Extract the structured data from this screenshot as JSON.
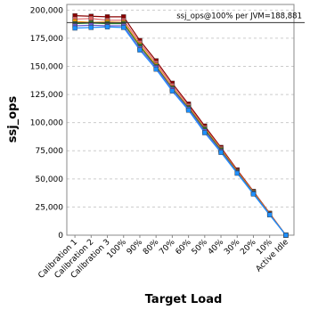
{
  "chart_data": {
    "type": "line",
    "y_label": "ssj_ops",
    "x_label": "Target Load",
    "categories": [
      "Calibration 1",
      "Calibration 2",
      "Calibration 3",
      "100%",
      "90%",
      "80%",
      "70%",
      "60%",
      "50%",
      "40%",
      "30%",
      "20%",
      "10%",
      "Active Idle"
    ],
    "series": [
      {
        "color": "#8b0000",
        "values": [
          195000,
          194500,
          194000,
          194000,
          173000,
          155000,
          135000,
          116500,
          97000,
          78000,
          58000,
          39000,
          19500,
          0
        ]
      },
      {
        "color": "#e06666",
        "values": [
          192000,
          192500,
          191000,
          191000,
          171000,
          153000,
          133000,
          115000,
          95500,
          77000,
          57000,
          38500,
          19000,
          0
        ]
      },
      {
        "color": "#ff9900",
        "values": [
          190000,
          189000,
          189500,
          189000,
          169000,
          151000,
          131000,
          113500,
          94500,
          76000,
          56500,
          38000,
          19000,
          0
        ]
      },
      {
        "color": "#2e7d32",
        "values": [
          188000,
          188500,
          188000,
          188000,
          168000,
          150000,
          130500,
          113000,
          94000,
          75500,
          56000,
          37500,
          18500,
          0
        ]
      },
      {
        "color": "#6a5acd",
        "values": [
          186000,
          186500,
          186000,
          186000,
          166000,
          149000,
          129500,
          112000,
          92500,
          74500,
          55500,
          37000,
          18500,
          0
        ]
      },
      {
        "color": "#1e90ff",
        "values": [
          184000,
          184500,
          185000,
          184500,
          164500,
          147500,
          128000,
          111000,
          91000,
          73500,
          55000,
          36500,
          18000,
          0
        ]
      }
    ],
    "ylim": [
      0,
      205000
    ],
    "yticks": [
      {
        "value": 0,
        "label": "0"
      },
      {
        "value": 25000,
        "label": "25,000"
      },
      {
        "value": 50000,
        "label": "50,000"
      },
      {
        "value": 75000,
        "label": "75,000"
      },
      {
        "value": 100000,
        "label": "100,000"
      },
      {
        "value": 125000,
        "label": "125,000"
      },
      {
        "value": 150000,
        "label": "150,000"
      },
      {
        "value": 175000,
        "label": "175,000"
      },
      {
        "value": 200000,
        "label": "200,000"
      }
    ],
    "grid": true,
    "reference_line": {
      "value": 188881,
      "label": "ssj_ops@100% per JVM=188,881"
    }
  }
}
